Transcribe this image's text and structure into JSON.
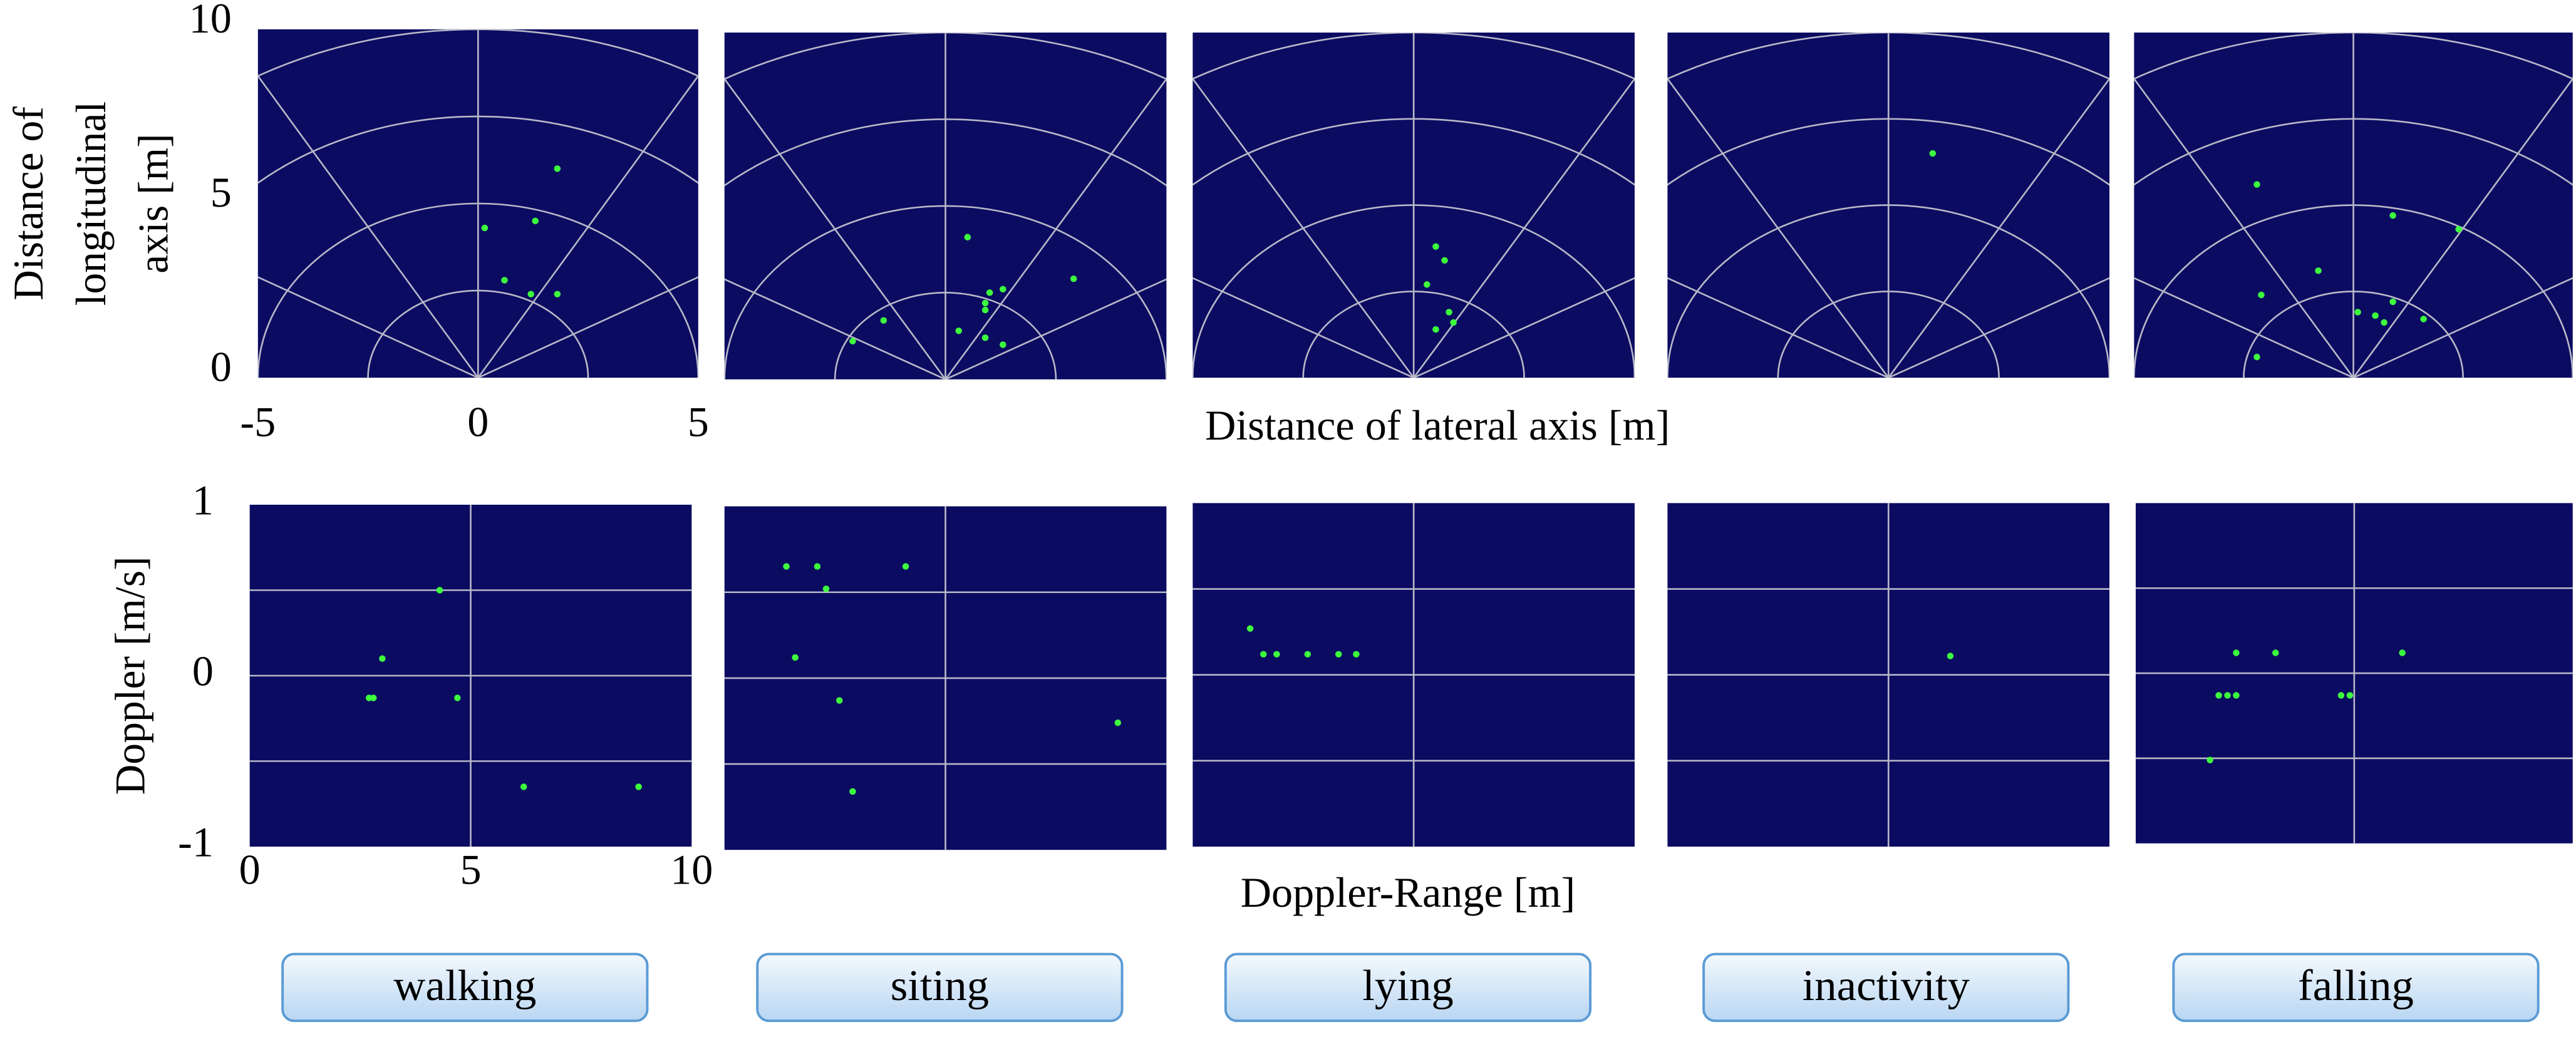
{
  "chart_data": [
    {
      "type": "scatter",
      "xlim": [
        -5,
        5
      ],
      "ylim": [
        0,
        10
      ],
      "xticks": [
        -5,
        0,
        5
      ],
      "yticks": [
        0,
        5,
        10
      ],
      "xlabel": "Distance of lateral axis [m]",
      "ylabel": [
        "Distance of",
        "longitudinal",
        "axis [m]"
      ],
      "color": "#3dff3d",
      "background": "#0b0b62",
      "x": [
        1.8,
        0.15,
        1.3,
        0.6,
        1.2,
        1.8
      ],
      "y": [
        6.0,
        4.3,
        4.5,
        2.8,
        2.4,
        2.4
      ]
    },
    {
      "type": "scatter",
      "xlim": [
        -5,
        5
      ],
      "ylim": [
        0,
        10
      ],
      "color": "#3dff3d",
      "background": "#0b0b62",
      "x": [
        0.5,
        1.3,
        1.0,
        0.9,
        0.9,
        2.9,
        -1.4,
        -2.1,
        0.3,
        0.9,
        1.3
      ],
      "y": [
        4.1,
        2.6,
        2.5,
        2.2,
        2.0,
        2.9,
        1.7,
        1.1,
        1.4,
        1.2,
        1.0
      ]
    },
    {
      "type": "scatter",
      "xlim": [
        -5,
        5
      ],
      "ylim": [
        0,
        10
      ],
      "color": "#3dff3d",
      "background": "#0b0b62",
      "x": [
        0.5,
        0.7,
        0.3,
        0.8,
        0.9,
        0.5
      ],
      "y": [
        3.8,
        3.4,
        2.7,
        1.9,
        1.6,
        1.4
      ]
    },
    {
      "type": "scatter",
      "xlim": [
        -5,
        5
      ],
      "ylim": [
        0,
        10
      ],
      "color": "#3dff3d",
      "background": "#0b0b62",
      "x": [
        1.0
      ],
      "y": [
        6.5
      ]
    },
    {
      "type": "scatter",
      "xlim": [
        -5,
        5
      ],
      "ylim": [
        0,
        10
      ],
      "color": "#3dff3d",
      "background": "#0b0b62",
      "x": [
        -2.2,
        0.9,
        2.4,
        -0.8,
        -2.1,
        0.1,
        0.9,
        0.5,
        0.7,
        1.6,
        -2.2
      ],
      "y": [
        5.6,
        4.7,
        4.3,
        3.1,
        2.4,
        1.9,
        2.2,
        1.8,
        1.6,
        1.7,
        0.6
      ]
    },
    {
      "type": "scatter",
      "xlim": [
        0,
        10
      ],
      "ylim": [
        -1,
        1
      ],
      "xticks": [
        0,
        5,
        10
      ],
      "yticks": [
        -1,
        0,
        1
      ],
      "xlabel": "Doppler-Range [m]",
      "ylabel": [
        "Doppler [m/s]"
      ],
      "color": "#3dff3d",
      "background": "#0b0b62",
      "x": [
        4.3,
        3.0,
        2.7,
        2.8,
        4.7,
        6.2,
        8.8
      ],
      "y": [
        0.5,
        0.1,
        -0.13,
        -0.13,
        -0.13,
        -0.65,
        -0.65
      ]
    },
    {
      "type": "scatter",
      "xlim": [
        0,
        10
      ],
      "ylim": [
        -1,
        1
      ],
      "color": "#3dff3d",
      "background": "#0b0b62",
      "x": [
        1.4,
        2.1,
        2.3,
        4.1,
        1.6,
        2.6,
        2.9,
        8.9
      ],
      "y": [
        0.65,
        0.65,
        0.52,
        0.65,
        0.12,
        -0.13,
        -0.66,
        -0.26
      ]
    },
    {
      "type": "scatter",
      "xlim": [
        0,
        10
      ],
      "ylim": [
        -1,
        1
      ],
      "color": "#3dff3d",
      "background": "#0b0b62",
      "x": [
        1.3,
        1.6,
        1.9,
        2.6,
        3.3,
        3.7
      ],
      "y": [
        0.27,
        0.12,
        0.12,
        0.12,
        0.12,
        0.12
      ]
    },
    {
      "type": "scatter",
      "xlim": [
        0,
        10
      ],
      "ylim": [
        -1,
        1
      ],
      "color": "#3dff3d",
      "background": "#0b0b62",
      "x": [
        6.4
      ],
      "y": [
        0.11
      ]
    },
    {
      "type": "scatter",
      "xlim": [
        0,
        10
      ],
      "ylim": [
        -1,
        1
      ],
      "color": "#3dff3d",
      "background": "#0b0b62",
      "x": [
        1.7,
        1.9,
        2.1,
        2.3,
        2.3,
        3.2,
        4.7,
        4.9,
        6.1
      ],
      "y": [
        -0.51,
        -0.13,
        -0.13,
        -0.13,
        0.12,
        0.12,
        -0.13,
        -0.13,
        0.12
      ]
    }
  ],
  "activities": [
    "walking",
    "siting",
    "lying",
    "inactivity",
    "falling"
  ]
}
